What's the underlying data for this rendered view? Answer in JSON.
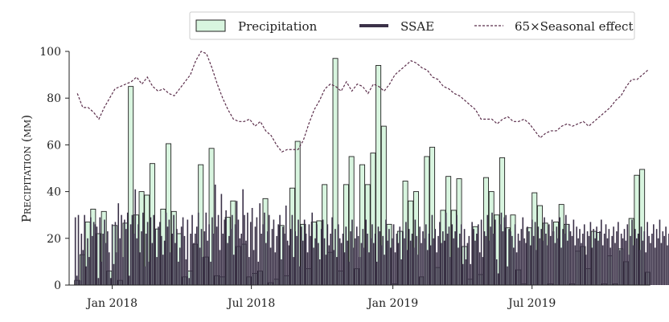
{
  "chart_data": {
    "type": "bar",
    "ylabel": "Precipitation (mm)",
    "ylim": [
      0,
      100
    ],
    "yticks": [
      0,
      20,
      40,
      60,
      80,
      100
    ],
    "x_range": [
      "2017-11-06",
      "2019-12-01"
    ],
    "xticks": [
      {
        "date": "2018-01-01",
        "label": "Jan 2018"
      },
      {
        "date": "2018-07-01",
        "label": "Jul 2018"
      },
      {
        "date": "2019-01-01",
        "label": "Jan 2019"
      },
      {
        "date": "2019-07-01",
        "label": "Jul 2019"
      }
    ],
    "grid": false,
    "legend": {
      "placement": "top-right",
      "entries": [
        {
          "label": "Precipitation",
          "kind": "bar"
        },
        {
          "label": "SSAE",
          "kind": "line"
        },
        {
          "label": "65×Seasonal effect",
          "kind": "dashed-line"
        }
      ]
    },
    "series": [
      {
        "name": "Precipitation",
        "kind": "weekly-bars",
        "color": "#d8f5df",
        "edge": "#222222",
        "week_start": [
          "2017-11-13",
          "2017-11-20",
          "2017-11-27",
          "2017-12-04",
          "2017-12-11",
          "2017-12-18",
          "2017-12-25",
          "2018-01-01",
          "2018-01-08",
          "2018-01-15",
          "2018-01-22",
          "2018-01-29",
          "2018-02-05",
          "2018-02-12",
          "2018-02-19",
          "2018-02-26",
          "2018-03-05",
          "2018-03-12",
          "2018-03-19",
          "2018-03-26",
          "2018-04-02",
          "2018-04-09",
          "2018-04-16",
          "2018-04-23",
          "2018-04-30",
          "2018-05-07",
          "2018-05-14",
          "2018-05-21",
          "2018-05-28",
          "2018-06-04",
          "2018-06-11",
          "2018-06-18",
          "2018-06-25",
          "2018-07-02",
          "2018-07-09",
          "2018-07-16",
          "2018-07-23",
          "2018-07-30",
          "2018-08-06",
          "2018-08-13",
          "2018-08-20",
          "2018-08-27",
          "2018-09-03",
          "2018-09-10",
          "2018-09-17",
          "2018-09-24",
          "2018-10-01",
          "2018-10-08",
          "2018-10-15",
          "2018-10-22",
          "2018-10-29",
          "2018-11-05",
          "2018-11-12",
          "2018-11-19",
          "2018-11-26",
          "2018-12-03",
          "2018-12-10",
          "2018-12-17",
          "2018-12-24",
          "2018-12-31",
          "2019-01-07",
          "2019-01-14",
          "2019-01-21",
          "2019-01-28",
          "2019-02-04",
          "2019-02-11",
          "2019-02-18",
          "2019-02-25",
          "2019-03-04",
          "2019-03-11",
          "2019-03-18",
          "2019-03-25",
          "2019-04-01",
          "2019-04-08",
          "2019-04-15",
          "2019-04-22",
          "2019-04-29",
          "2019-05-06",
          "2019-05-13",
          "2019-05-20",
          "2019-05-27",
          "2019-06-03",
          "2019-06-10",
          "2019-06-17",
          "2019-06-24",
          "2019-07-01",
          "2019-07-08",
          "2019-07-15",
          "2019-07-22",
          "2019-07-29",
          "2019-08-05",
          "2019-08-12",
          "2019-08-19",
          "2019-08-26",
          "2019-09-02",
          "2019-09-09",
          "2019-09-16",
          "2019-09-23",
          "2019-09-30",
          "2019-10-07",
          "2019-10-14",
          "2019-10-21",
          "2019-10-28",
          "2019-11-04",
          "2019-11-11",
          "2019-11-18",
          "2019-11-25"
        ],
        "values": [
          2,
          13,
          27,
          32.5,
          22,
          31.5,
          6,
          25.5,
          2,
          26.5,
          85,
          30,
          40,
          38.5,
          52,
          24,
          32.5,
          60.5,
          31.5,
          22,
          3.5,
          6,
          17.5,
          51.5,
          12,
          58.5,
          4,
          3.5,
          29,
          36,
          16.5,
          17.5,
          3.5,
          5,
          6,
          37,
          1,
          2.5,
          25.5,
          4,
          41.5,
          61.5,
          26,
          7,
          27,
          27.5,
          43,
          14,
          97,
          6,
          43,
          55,
          7,
          51.5,
          43,
          56.5,
          94,
          68,
          26,
          0.5,
          23,
          44.5,
          36,
          40,
          3.5,
          55,
          59,
          7.5,
          32,
          46.5,
          32,
          45.5,
          16.5,
          2.5,
          25,
          4.5,
          46,
          40,
          30,
          54.5,
          24.5,
          30,
          6.5,
          0.5,
          24.5,
          39.5,
          34,
          26.5,
          0.5,
          27,
          34.5,
          26,
          0.5,
          14.5,
          16.5,
          7,
          23,
          22.5,
          0.5,
          12.5,
          0.5,
          15.5,
          10,
          28.5,
          47,
          49.5,
          5.5
        ]
      },
      {
        "name": "SSAE",
        "kind": "daily-lines",
        "color": "#3b3148",
        "first_day": "2017-11-13",
        "day_step": 2,
        "values": [
          29,
          4,
          30,
          2,
          22,
          15,
          30,
          8,
          20,
          12,
          29,
          21,
          27,
          26,
          25,
          3,
          29,
          10,
          22,
          28,
          18,
          23,
          14,
          3,
          26,
          9,
          27,
          14,
          35,
          20,
          30,
          12,
          28,
          24,
          31,
          4,
          26,
          30,
          22,
          41,
          20,
          26,
          14,
          23,
          31,
          8,
          22,
          27,
          10,
          29,
          18,
          30,
          24,
          12,
          25,
          27,
          21,
          13,
          19,
          31,
          25,
          28,
          14,
          22,
          30,
          18,
          24,
          10,
          16,
          25,
          29,
          21,
          11,
          28,
          3,
          22,
          30,
          18,
          22,
          25,
          31,
          16,
          24,
          12,
          23,
          31,
          19,
          26,
          10,
          29,
          22,
          43,
          25,
          30,
          15,
          39,
          22,
          28,
          32,
          18,
          21,
          24,
          30,
          13,
          26,
          36,
          28,
          20,
          22,
          41,
          30,
          19,
          31,
          12,
          27,
          33,
          15,
          25,
          29,
          10,
          35,
          22,
          26,
          31,
          18,
          23,
          30,
          16,
          24,
          28,
          14,
          21,
          26,
          30,
          11,
          25,
          22,
          34,
          19,
          17,
          24,
          30,
          12,
          23,
          21,
          28,
          8,
          25,
          19,
          28,
          22,
          14,
          26,
          21,
          31,
          16,
          20,
          26,
          18,
          11,
          24,
          28,
          20,
          13,
          26,
          17,
          22,
          29,
          15,
          24,
          12,
          26,
          20,
          18,
          22,
          14,
          25,
          19,
          10,
          23,
          28,
          16,
          20,
          25,
          21,
          12,
          18,
          24,
          16,
          28,
          22,
          14,
          20,
          26,
          18,
          22,
          10,
          25,
          23,
          17,
          21,
          13,
          28,
          19,
          24,
          16,
          20,
          26,
          14,
          22,
          18,
          25,
          11,
          23,
          20,
          27,
          15,
          24,
          19,
          22,
          16,
          28,
          21,
          13,
          25,
          18,
          23,
          20,
          26,
          15,
          22,
          17,
          30,
          20,
          24,
          14,
          21,
          27,
          18,
          23,
          19,
          31,
          22,
          25,
          12,
          26,
          20,
          23,
          30,
          16,
          22,
          26,
          9,
          24,
          11,
          18,
          21,
          9,
          27,
          24,
          19,
          22,
          26,
          14,
          28,
          12,
          23,
          21,
          30,
          19,
          25,
          31,
          22,
          28,
          11,
          5,
          26,
          31,
          23,
          29,
          30,
          8,
          24,
          23,
          21,
          16,
          26,
          14,
          22,
          19,
          24,
          29,
          20,
          18,
          25,
          23,
          17,
          28,
          21,
          27,
          15,
          25,
          20,
          24,
          19,
          29,
          22,
          17,
          26,
          21,
          28,
          23,
          18,
          25,
          20,
          29,
          16,
          24,
          22,
          30,
          19,
          26,
          23,
          21,
          28,
          17,
          25,
          20,
          24,
          18,
          22,
          26,
          13,
          23,
          21,
          27,
          16,
          24,
          20,
          25,
          19,
          23,
          28,
          17,
          22,
          26,
          20,
          24,
          16,
          21,
          25,
          18,
          23,
          27,
          15,
          22,
          20,
          24,
          19,
          26,
          13,
          21,
          28,
          17,
          24,
          20,
          22,
          15,
          25,
          19,
          23,
          14,
          27,
          21,
          18,
          22,
          26,
          16,
          24,
          20,
          28,
          18,
          23,
          21,
          25,
          17,
          22,
          27,
          19,
          24,
          14,
          20,
          26,
          18,
          23,
          30,
          16,
          25,
          11
        ]
      },
      {
        "name": "65×Seasonal effect",
        "kind": "dashed-line",
        "color": "#5a2d4a",
        "points": [
          [
            "2017-11-13",
            82
          ],
          [
            "2017-11-20",
            76
          ],
          [
            "2017-11-27",
            76
          ],
          [
            "2017-12-04",
            74
          ],
          [
            "2017-12-11",
            71
          ],
          [
            "2017-12-18",
            76
          ],
          [
            "2017-12-25",
            80
          ],
          [
            "2018-01-01",
            84
          ],
          [
            "2018-01-08",
            85
          ],
          [
            "2018-01-15",
            86
          ],
          [
            "2018-01-22",
            87
          ],
          [
            "2018-01-29",
            89
          ],
          [
            "2018-02-05",
            86
          ],
          [
            "2018-02-12",
            89
          ],
          [
            "2018-02-19",
            85
          ],
          [
            "2018-02-26",
            83
          ],
          [
            "2018-03-05",
            84
          ],
          [
            "2018-03-12",
            82
          ],
          [
            "2018-03-19",
            81
          ],
          [
            "2018-03-26",
            84
          ],
          [
            "2018-04-02",
            87
          ],
          [
            "2018-04-09",
            90
          ],
          [
            "2018-04-16",
            96
          ],
          [
            "2018-04-23",
            100
          ],
          [
            "2018-04-30",
            99
          ],
          [
            "2018-05-07",
            93
          ],
          [
            "2018-05-14",
            86
          ],
          [
            "2018-05-21",
            80
          ],
          [
            "2018-05-28",
            75
          ],
          [
            "2018-06-04",
            71
          ],
          [
            "2018-06-11",
            70
          ],
          [
            "2018-06-18",
            70
          ],
          [
            "2018-06-25",
            71
          ],
          [
            "2018-07-02",
            68
          ],
          [
            "2018-07-09",
            70
          ],
          [
            "2018-07-16",
            66
          ],
          [
            "2018-07-23",
            64
          ],
          [
            "2018-07-30",
            60
          ],
          [
            "2018-08-06",
            57
          ],
          [
            "2018-08-13",
            58
          ],
          [
            "2018-08-20",
            58
          ],
          [
            "2018-08-27",
            58
          ],
          [
            "2018-09-03",
            62
          ],
          [
            "2018-09-10",
            69
          ],
          [
            "2018-09-17",
            75
          ],
          [
            "2018-09-24",
            79
          ],
          [
            "2018-10-01",
            84
          ],
          [
            "2018-10-08",
            86
          ],
          [
            "2018-10-15",
            85
          ],
          [
            "2018-10-22",
            83
          ],
          [
            "2018-10-29",
            87
          ],
          [
            "2018-11-05",
            83
          ],
          [
            "2018-11-12",
            86
          ],
          [
            "2018-11-19",
            85
          ],
          [
            "2018-11-26",
            82
          ],
          [
            "2018-12-03",
            86
          ],
          [
            "2018-12-10",
            85
          ],
          [
            "2018-12-17",
            83
          ],
          [
            "2018-12-24",
            86
          ],
          [
            "2018-12-31",
            90
          ],
          [
            "2019-01-07",
            92
          ],
          [
            "2019-01-14",
            94
          ],
          [
            "2019-01-21",
            96
          ],
          [
            "2019-01-28",
            95
          ],
          [
            "2019-02-04",
            93
          ],
          [
            "2019-02-11",
            92
          ],
          [
            "2019-02-18",
            89
          ],
          [
            "2019-02-25",
            88
          ],
          [
            "2019-03-04",
            85
          ],
          [
            "2019-03-11",
            84
          ],
          [
            "2019-03-18",
            82
          ],
          [
            "2019-03-25",
            81
          ],
          [
            "2019-04-01",
            79
          ],
          [
            "2019-04-08",
            77
          ],
          [
            "2019-04-15",
            75
          ],
          [
            "2019-04-22",
            71
          ],
          [
            "2019-04-29",
            71
          ],
          [
            "2019-05-06",
            71
          ],
          [
            "2019-05-13",
            69
          ],
          [
            "2019-05-20",
            71
          ],
          [
            "2019-05-27",
            72
          ],
          [
            "2019-06-03",
            70
          ],
          [
            "2019-06-10",
            70
          ],
          [
            "2019-06-17",
            71
          ],
          [
            "2019-06-24",
            69
          ],
          [
            "2019-07-01",
            66
          ],
          [
            "2019-07-08",
            63
          ],
          [
            "2019-07-15",
            65
          ],
          [
            "2019-07-22",
            66
          ],
          [
            "2019-07-29",
            66
          ],
          [
            "2019-08-05",
            68
          ],
          [
            "2019-08-12",
            69
          ],
          [
            "2019-08-19",
            68
          ],
          [
            "2019-08-26",
            69
          ],
          [
            "2019-09-02",
            70
          ],
          [
            "2019-09-09",
            68
          ],
          [
            "2019-09-16",
            70
          ],
          [
            "2019-09-23",
            72
          ],
          [
            "2019-09-30",
            74
          ],
          [
            "2019-10-07",
            76
          ],
          [
            "2019-10-14",
            79
          ],
          [
            "2019-10-21",
            81
          ],
          [
            "2019-10-28",
            85
          ],
          [
            "2019-11-04",
            88
          ],
          [
            "2019-11-11",
            88
          ],
          [
            "2019-11-18",
            90
          ],
          [
            "2019-11-25",
            92
          ]
        ]
      }
    ]
  }
}
